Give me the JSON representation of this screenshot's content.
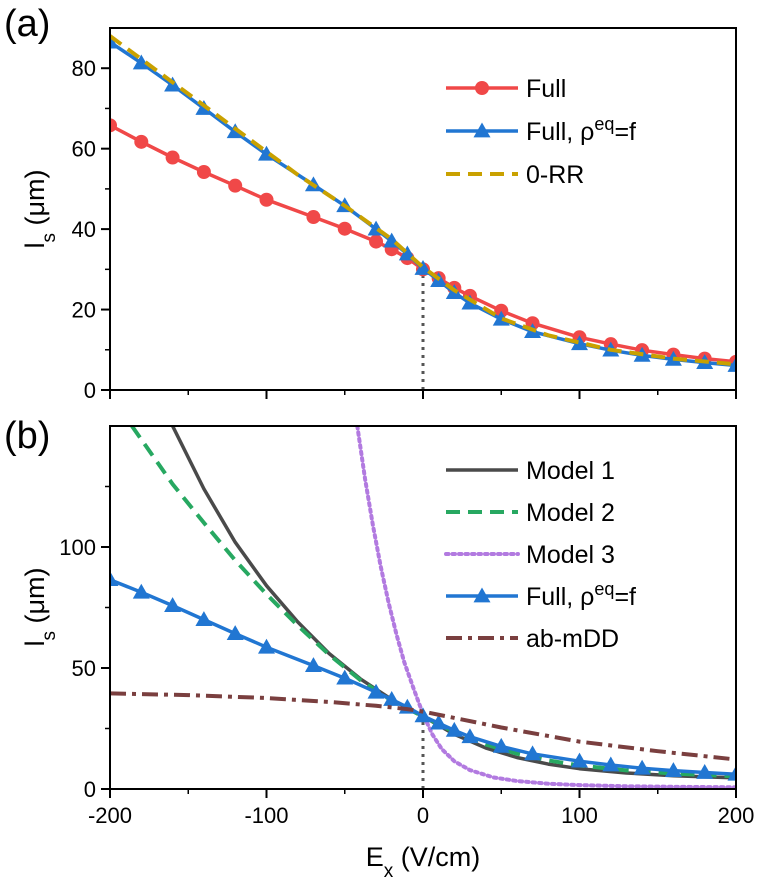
{
  "colors": {
    "full": "#f04848",
    "full_rho": "#2176d2",
    "zero_rr": "#c9a100",
    "model1": "#4a4a4a",
    "model2": "#27a861",
    "model3": "#b27ae0",
    "ab_mdd": "#7a3f3f",
    "dotted_zero": "#555555"
  },
  "chart_data": [
    {
      "type": "line",
      "panel_label": "(a)",
      "ylabel_main": "l",
      "ylabel_sub": "s",
      "ylabel_unit": " (μm)",
      "xlim": [
        -200,
        200
      ],
      "ylim": [
        0,
        90
      ],
      "xticks": [
        "-200",
        "-100",
        "0",
        "100",
        "200"
      ],
      "xtick_values": [
        -200,
        -100,
        0,
        100,
        200
      ],
      "yticks": [
        "0",
        "20",
        "40",
        "60",
        "80"
      ],
      "ytick_values": [
        0,
        20,
        40,
        60,
        80
      ],
      "show_xtick_labels": false,
      "vline_x": 0,
      "legend_position": "top-right",
      "series": [
        {
          "name": "Full",
          "legend_main": "Full",
          "legend_sup": "",
          "legend_tail": "",
          "style": "solid",
          "color_key": "full",
          "marker": "circle",
          "x": [
            -200,
            -180,
            -160,
            -140,
            -120,
            -100,
            -70,
            -50,
            -30,
            -20,
            -10,
            0,
            10,
            20,
            30,
            50,
            70,
            100,
            120,
            140,
            160,
            180,
            200
          ],
          "y": [
            65.8,
            61.7,
            57.8,
            54.2,
            50.8,
            47.3,
            43.0,
            40.1,
            36.9,
            35.0,
            32.8,
            30.0,
            27.8,
            25.4,
            23.4,
            19.7,
            16.6,
            13.1,
            11.4,
            9.9,
            8.8,
            7.8,
            7.0
          ]
        },
        {
          "name": "Full, ρeq=f",
          "legend_main": "Full, ρ",
          "legend_sup": "eq",
          "legend_tail": "=f",
          "style": "solid",
          "color_key": "full_rho",
          "marker": "triangle",
          "x": [
            -200,
            -180,
            -160,
            -140,
            -120,
            -100,
            -70,
            -50,
            -30,
            -20,
            -10,
            0,
            10,
            20,
            30,
            50,
            70,
            100,
            120,
            140,
            160,
            180,
            200
          ],
          "y": [
            86.5,
            81.3,
            75.8,
            70.0,
            64.2,
            58.6,
            51.0,
            45.8,
            40.0,
            37.0,
            33.8,
            30.2,
            27.2,
            24.2,
            21.6,
            17.6,
            14.5,
            11.5,
            9.9,
            8.6,
            7.6,
            6.8,
            6.1
          ]
        },
        {
          "name": "0-RR",
          "legend_main": "0-RR",
          "legend_sup": "",
          "legend_tail": "",
          "style": "dashed",
          "color_key": "zero_rr",
          "marker": "none",
          "x": [
            -200,
            -160,
            -120,
            -80,
            -50,
            -20,
            0,
            20,
            50,
            80,
            120,
            160,
            200
          ],
          "y": [
            88.0,
            76.5,
            65.0,
            53.5,
            45.8,
            37.5,
            30.5,
            24.8,
            17.8,
            13.6,
            10.0,
            7.8,
            6.4
          ]
        }
      ]
    },
    {
      "type": "line",
      "panel_label": "(b)",
      "ylabel_main": "l",
      "ylabel_sub": "s",
      "ylabel_unit": " (μm)",
      "xlabel_main": "E",
      "xlabel_sub": "x",
      "xlabel_unit": " (V/cm)",
      "xlim": [
        -200,
        200
      ],
      "ylim": [
        0,
        150
      ],
      "xticks": [
        "-200",
        "-100",
        "0",
        "100",
        "200"
      ],
      "xtick_values": [
        -200,
        -100,
        0,
        100,
        200
      ],
      "yticks": [
        "0",
        "50",
        "100"
      ],
      "ytick_values": [
        0,
        50,
        100
      ],
      "show_xtick_labels": true,
      "vline_x": 0,
      "legend_position": "top-right",
      "series": [
        {
          "name": "Model 1",
          "legend_main": "Model 1",
          "legend_sup": "",
          "legend_tail": "",
          "style": "solid",
          "color_key": "model1",
          "marker": "none",
          "x": [
            -160,
            -140,
            -120,
            -100,
            -80,
            -60,
            -40,
            -20,
            0,
            20,
            40,
            60,
            80,
            100,
            130,
            160,
            200
          ],
          "y": [
            150,
            124,
            102,
            84,
            69,
            56,
            45.5,
            37,
            30,
            22.6,
            17.0,
            13.0,
            10.3,
            8.4,
            6.6,
            5.5,
            4.6
          ]
        },
        {
          "name": "Model 2",
          "legend_main": "Model 2",
          "legend_sup": "",
          "legend_tail": "",
          "style": "dashed",
          "color_key": "model2",
          "marker": "none",
          "x": [
            -186,
            -160,
            -140,
            -120,
            -100,
            -80,
            -60,
            -40,
            -20,
            0,
            20,
            40,
            60,
            80,
            100,
            130,
            160,
            200
          ],
          "y": [
            150,
            126,
            110,
            94.5,
            80.5,
            67.5,
            55.5,
            45.0,
            36.5,
            30,
            23.5,
            18.4,
            14.6,
            11.8,
            9.7,
            7.7,
            6.4,
            5.2
          ]
        },
        {
          "name": "Model 3",
          "legend_main": "Model 3",
          "legend_sup": "",
          "legend_tail": "",
          "style": "dotted",
          "color_key": "model3",
          "marker": "none",
          "x": [
            -42,
            -37,
            -32,
            -27,
            -22,
            -17,
            -12,
            -6,
            0,
            6,
            12,
            20,
            30,
            45,
            60,
            80,
            100,
            130,
            160,
            200
          ],
          "y": [
            150,
            128,
            109,
            92,
            77,
            64,
            52.5,
            41.5,
            31,
            22.5,
            16.5,
            11.5,
            7.8,
            4.8,
            3.3,
            2.2,
            1.6,
            1.1,
            0.9,
            0.7
          ]
        },
        {
          "name": "Full, ρeq=f",
          "legend_main": "Full, ρ",
          "legend_sup": "eq",
          "legend_tail": "=f",
          "style": "solid",
          "color_key": "full_rho",
          "marker": "triangle",
          "x": [
            -200,
            -180,
            -160,
            -140,
            -120,
            -100,
            -70,
            -50,
            -30,
            -20,
            -10,
            0,
            10,
            20,
            30,
            50,
            70,
            100,
            120,
            140,
            160,
            180,
            200
          ],
          "y": [
            86.5,
            81.3,
            75.8,
            70.0,
            64.2,
            58.6,
            51.0,
            45.8,
            40.0,
            37.0,
            33.8,
            30.2,
            27.2,
            24.2,
            21.6,
            17.6,
            14.5,
            11.5,
            9.9,
            8.6,
            7.6,
            6.8,
            6.1
          ]
        },
        {
          "name": "ab-mDD",
          "legend_main": "ab-mDD",
          "legend_sup": "",
          "legend_tail": "",
          "style": "dashdot",
          "color_key": "ab_mdd",
          "marker": "none",
          "x": [
            -200,
            -150,
            -100,
            -60,
            -30,
            -10,
            0,
            20,
            50,
            100,
            150,
            200
          ],
          "y": [
            39.5,
            38.8,
            37.6,
            36.0,
            34.4,
            33.0,
            32.0,
            29.4,
            25.4,
            19.6,
            15.6,
            12.2
          ]
        }
      ]
    }
  ]
}
